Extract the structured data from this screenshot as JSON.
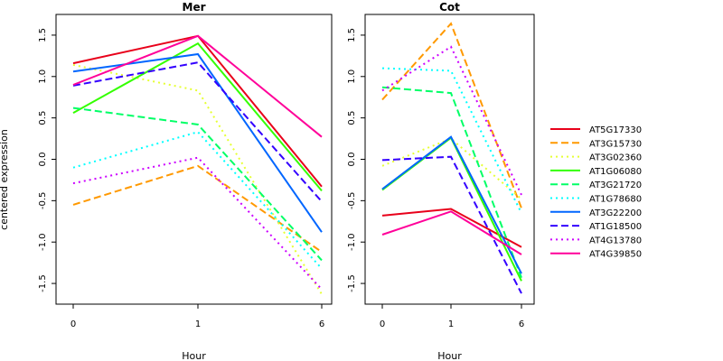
{
  "ylabel": "centered expression",
  "chart_data": [
    {
      "type": "line",
      "title": "Mer",
      "xlabel": "Hour",
      "ylabel": "centered expression",
      "categories": [
        "0",
        "1",
        "6"
      ],
      "ylim": [
        -1.75,
        1.75
      ],
      "yticks": [
        -1.5,
        -1.0,
        -0.5,
        0.0,
        0.5,
        1.0,
        1.5
      ],
      "ytick_labels": [
        "-1.5",
        "-1.0",
        "-0.5",
        "0.0",
        "0.5",
        "1.0",
        "1.5"
      ],
      "series": [
        {
          "name": "AT5G17330",
          "values": [
            1.16,
            1.49,
            -0.33
          ]
        },
        {
          "name": "AT3G15730",
          "values": [
            -0.55,
            -0.08,
            -1.12
          ]
        },
        {
          "name": "AT3G02360",
          "values": [
            1.14,
            0.83,
            -1.63
          ]
        },
        {
          "name": "AT1G06080",
          "values": [
            0.56,
            1.4,
            -0.38
          ]
        },
        {
          "name": "AT3G21720",
          "values": [
            0.62,
            0.42,
            -1.22
          ]
        },
        {
          "name": "AT1G78680",
          "values": [
            -0.1,
            0.33,
            -1.32
          ]
        },
        {
          "name": "AT3G22200",
          "values": [
            1.06,
            1.27,
            -0.88
          ]
        },
        {
          "name": "AT1G18500",
          "values": [
            0.89,
            1.17,
            -0.51
          ]
        },
        {
          "name": "AT4G13780",
          "values": [
            -0.29,
            0.02,
            -1.57
          ]
        },
        {
          "name": "AT4G39850",
          "values": [
            0.9,
            1.49,
            0.27
          ]
        }
      ]
    },
    {
      "type": "line",
      "title": "Cot",
      "xlabel": "Hour",
      "ylabel": "",
      "categories": [
        "0",
        "1",
        "6"
      ],
      "ylim": [
        -1.75,
        1.75
      ],
      "yticks": [
        -1.5,
        -1.0,
        -0.5,
        0.0,
        0.5,
        1.0,
        1.5
      ],
      "ytick_labels": [
        "-1.5",
        "-1.0",
        "-0.5",
        "0.0",
        "0.5",
        "1.0",
        "1.5"
      ],
      "series": [
        {
          "name": "AT5G17330",
          "values": [
            -0.68,
            -0.6,
            -1.06
          ]
        },
        {
          "name": "AT3G15730",
          "values": [
            0.72,
            1.64,
            -0.59
          ]
        },
        {
          "name": "AT3G02360",
          "values": [
            -0.08,
            0.25,
            -0.48
          ]
        },
        {
          "name": "AT1G06080",
          "values": [
            -0.37,
            0.26,
            -1.47
          ]
        },
        {
          "name": "AT3G21720",
          "values": [
            0.87,
            0.8,
            -1.43
          ]
        },
        {
          "name": "AT1G78680",
          "values": [
            1.1,
            1.07,
            -0.65
          ]
        },
        {
          "name": "AT3G22200",
          "values": [
            -0.36,
            0.27,
            -1.38
          ]
        },
        {
          "name": "AT1G18500",
          "values": [
            -0.01,
            0.03,
            -1.62
          ]
        },
        {
          "name": "AT4G13780",
          "values": [
            0.83,
            1.36,
            -0.43
          ]
        },
        {
          "name": "AT4G39850",
          "values": [
            -0.91,
            -0.63,
            -1.15
          ]
        }
      ]
    }
  ],
  "legend": {
    "placement": "right",
    "items": [
      {
        "name": "AT5G17330",
        "color": "#E8001A",
        "style": "solid"
      },
      {
        "name": "AT3G15730",
        "color": "#FF9900",
        "style": "dashed"
      },
      {
        "name": "AT3G02360",
        "color": "#E6FF33",
        "style": "dotted"
      },
      {
        "name": "AT1G06080",
        "color": "#33FF00",
        "style": "solid"
      },
      {
        "name": "AT3G21720",
        "color": "#00FF66",
        "style": "dashed"
      },
      {
        "name": "AT1G78680",
        "color": "#00FFFF",
        "style": "dotted"
      },
      {
        "name": "AT3G22200",
        "color": "#0066FF",
        "style": "solid"
      },
      {
        "name": "AT1G18500",
        "color": "#3300FF",
        "style": "dashed"
      },
      {
        "name": "AT4G13780",
        "color": "#CC00FF",
        "style": "dotted"
      },
      {
        "name": "AT4G39850",
        "color": "#FF0099",
        "style": "solid"
      }
    ]
  }
}
